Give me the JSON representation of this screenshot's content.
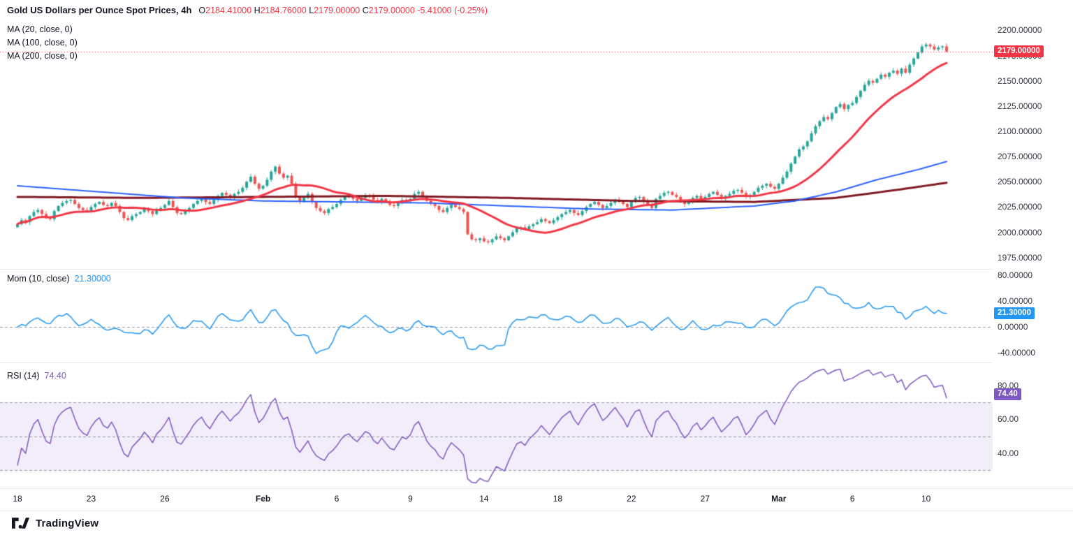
{
  "colors": {
    "background": "#ffffff",
    "up_candle": "#26a69a",
    "down_candle": "#ef5350",
    "ma20": "#f23645",
    "ma100": "#2962ff",
    "ma200": "#801922",
    "momentum_line": "#2196f3",
    "rsi_line": "#7e57c2",
    "rsi_band_fill": "rgba(126,87,194,0.10)",
    "price_badge_bg": "#f23645",
    "mom_badge_bg": "#2196f3",
    "rsi_badge_bg": "#7e57c2",
    "ohlc_value": "#f23645",
    "axis_text": "#363a45",
    "dashed_line": "#9598a1",
    "last_price_line": "#f23645",
    "separator": "#e7e9ee"
  },
  "header": {
    "title": "Gold US Dollars per Ounce Spot Prices, 4h",
    "ohlc": {
      "open_label": "O",
      "open": "2184.41000",
      "high_label": "H",
      "high": "2184.76000",
      "low_label": "L",
      "low": "2179.00000",
      "close_label": "C",
      "close": "2179.00000",
      "change": "-5.41000 (-0.25%)"
    }
  },
  "indicators": {
    "ma_labels": [
      "MA (20, close, 0)",
      "MA (100, close, 0)",
      "MA (200, close, 0)"
    ],
    "mom_label": "Mom (10, close)",
    "mom_value": "21.30000",
    "rsi_label": "RSI (14)",
    "rsi_value": "74.40"
  },
  "badges": {
    "price": "2179.00000",
    "mom": "21.30000",
    "rsi": "74.40"
  },
  "footer": {
    "brand": "TradingView"
  },
  "chart_data": [
    {
      "type": "candlestick",
      "title": "Gold US Dollars per Ounce Spot Prices",
      "timeframe": "4h",
      "bars_per_day": 6,
      "ylim": [
        1963,
        2230
      ],
      "y_ticks": [
        2200,
        2175,
        2150,
        2125,
        2100,
        2075,
        2050,
        2025,
        2000,
        1975
      ],
      "y_decimals": 5,
      "last_price": 2179.0,
      "closes": [
        2008,
        2012,
        2010,
        2016,
        2020,
        2022,
        2018,
        2014,
        2013,
        2021,
        2026,
        2029,
        2031,
        2032,
        2028,
        2024,
        2022,
        2021,
        2025,
        2028,
        2030,
        2027,
        2026,
        2029,
        2026,
        2020,
        2014,
        2012,
        2016,
        2018,
        2020,
        2023,
        2021,
        2018,
        2022,
        2024,
        2027,
        2031,
        2025,
        2019,
        2018,
        2021,
        2024,
        2028,
        2031,
        2033,
        2030,
        2028,
        2032,
        2036,
        2039,
        2037,
        2035,
        2038,
        2040,
        2044,
        2050,
        2055,
        2048,
        2043,
        2046,
        2052,
        2060,
        2065,
        2058,
        2054,
        2056,
        2048,
        2035,
        2030,
        2034,
        2038,
        2030,
        2024,
        2021,
        2019,
        2023,
        2025,
        2028,
        2032,
        2035,
        2036,
        2033,
        2031,
        2034,
        2037,
        2036,
        2032,
        2030,
        2033,
        2030,
        2027,
        2026,
        2029,
        2032,
        2031,
        2033,
        2038,
        2040,
        2036,
        2031,
        2028,
        2026,
        2022,
        2020,
        2024,
        2027,
        2025,
        2023,
        2020,
        1998,
        1993,
        1992,
        1994,
        1991,
        1990,
        1993,
        1996,
        1994,
        1992,
        1996,
        2000,
        2004,
        2005,
        2003,
        2006,
        2008,
        2010,
        2013,
        2011,
        2009,
        2012,
        2015,
        2018,
        2020,
        2022,
        2019,
        2017,
        2021,
        2025,
        2028,
        2030,
        2027,
        2024,
        2026,
        2029,
        2032,
        2030,
        2028,
        2025,
        2030,
        2034,
        2035,
        2031,
        2027,
        2024,
        2033,
        2036,
        2039,
        2040,
        2037,
        2035,
        2031,
        2028,
        2030,
        2034,
        2036,
        2033,
        2035,
        2038,
        2040,
        2037,
        2034,
        2036,
        2038,
        2041,
        2042,
        2039,
        2035,
        2037,
        2040,
        2044,
        2046,
        2048,
        2045,
        2043,
        2048,
        2054,
        2060,
        2068,
        2075,
        2082,
        2085,
        2090,
        2098,
        2105,
        2110,
        2114,
        2112,
        2118,
        2124,
        2127,
        2122,
        2126,
        2128,
        2134,
        2140,
        2146,
        2150,
        2148,
        2152,
        2156,
        2154,
        2158,
        2160,
        2157,
        2162,
        2158,
        2166,
        2172,
        2178,
        2184,
        2186,
        2184,
        2181,
        2183,
        2184,
        2179
      ],
      "x_ticks": [
        {
          "label": "18",
          "bar": 0
        },
        {
          "label": "23",
          "bar": 18
        },
        {
          "label": "26",
          "bar": 36
        },
        {
          "label": "Feb",
          "bar": 60,
          "bold": true
        },
        {
          "label": "6",
          "bar": 78
        },
        {
          "label": "9",
          "bar": 96
        },
        {
          "label": "14",
          "bar": 114
        },
        {
          "label": "18",
          "bar": 132
        },
        {
          "label": "22",
          "bar": 150
        },
        {
          "label": "27",
          "bar": 168
        },
        {
          "label": "Mar",
          "bar": 186,
          "bold": true
        },
        {
          "label": "6",
          "bar": 204
        },
        {
          "label": "10",
          "bar": 222
        }
      ],
      "overlays": [
        {
          "name": "MA 20",
          "type": "sma",
          "period": 20
        },
        {
          "name": "MA 100",
          "type": "anchors",
          "points": [
            [
              0,
              2046
            ],
            [
              20,
              2040
            ],
            [
              40,
              2034
            ],
            [
              60,
              2031
            ],
            [
              80,
              2030
            ],
            [
              100,
              2029
            ],
            [
              120,
              2026
            ],
            [
              140,
              2023
            ],
            [
              160,
              2022
            ],
            [
              180,
              2026
            ],
            [
              190,
              2031
            ],
            [
              200,
              2040
            ],
            [
              210,
              2052
            ],
            [
              220,
              2062
            ],
            [
              227,
              2070
            ]
          ]
        },
        {
          "name": "MA 200",
          "type": "anchors",
          "points": [
            [
              0,
              2035
            ],
            [
              30,
              2034
            ],
            [
              60,
              2035
            ],
            [
              90,
              2036
            ],
            [
              120,
              2034
            ],
            [
              150,
              2031
            ],
            [
              180,
              2030
            ],
            [
              200,
              2034
            ],
            [
              215,
              2042
            ],
            [
              227,
              2049
            ]
          ]
        }
      ]
    },
    {
      "type": "line",
      "name": "Momentum (10, close)",
      "derivation": "close[i] - close[i-10]",
      "current": 21.3,
      "y_ticks": [
        80,
        40,
        0,
        -40
      ],
      "y_decimals": 5,
      "ylim": [
        -56,
        89
      ],
      "zero_line_dashed": true
    },
    {
      "type": "line",
      "name": "RSI (14)",
      "derivation": "wilder_rsi(close, 14)",
      "current": 74.4,
      "y_ticks": [
        80,
        60,
        40
      ],
      "y_decimals": 2,
      "ylim": [
        19,
        93
      ],
      "band": [
        30,
        70
      ],
      "dashed_levels": [
        70,
        50,
        30
      ]
    }
  ]
}
